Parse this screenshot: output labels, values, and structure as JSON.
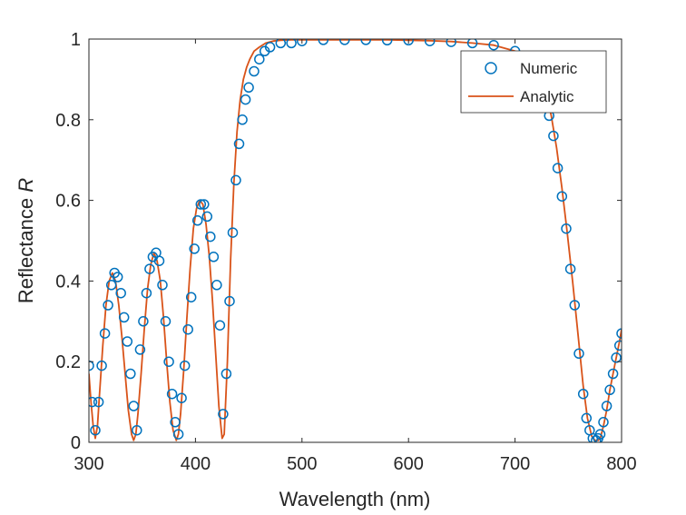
{
  "chart_data": {
    "type": "line",
    "xlabel": "Wavelength (nm)",
    "ylabel_prefix": "Reflectance",
    "ylabel_symbol": "R",
    "xlim": [
      300,
      800
    ],
    "ylim": [
      0,
      1
    ],
    "xticks": [
      300,
      400,
      500,
      600,
      700,
      800
    ],
    "xtick_labels": [
      "300",
      "400",
      "500",
      "600",
      "700",
      "800"
    ],
    "yticks": [
      0,
      0.2,
      0.4,
      0.6,
      0.8,
      1
    ],
    "ytick_labels": [
      "0",
      "0.2",
      "0.4",
      "0.6",
      "0.8",
      "1"
    ],
    "grid": false,
    "legend_placement": "top-right",
    "series": [
      {
        "name": "Numeric",
        "style": "circle-markers",
        "color": "#0072BD",
        "x": [
          300,
          303,
          306,
          309,
          312,
          315,
          318,
          321,
          324,
          327,
          330,
          333,
          336,
          339,
          342,
          345,
          348,
          351,
          354,
          357,
          360,
          363,
          366,
          369,
          372,
          375,
          378,
          381,
          384,
          387,
          390,
          393,
          396,
          399,
          402,
          405,
          408,
          411,
          414,
          417,
          420,
          423,
          426,
          429,
          432,
          435,
          438,
          441,
          444,
          447,
          450,
          455,
          460,
          465,
          470,
          480,
          490,
          500,
          520,
          540,
          560,
          580,
          600,
          620,
          640,
          660,
          680,
          700,
          715,
          725,
          732,
          736,
          740,
          744,
          748,
          752,
          756,
          760,
          764,
          767,
          770,
          773,
          776,
          778,
          780,
          783,
          786,
          789,
          792,
          795,
          798,
          800
        ],
        "y": [
          0.19,
          0.1,
          0.03,
          0.1,
          0.19,
          0.27,
          0.34,
          0.39,
          0.42,
          0.41,
          0.37,
          0.31,
          0.25,
          0.17,
          0.09,
          0.03,
          0.23,
          0.3,
          0.37,
          0.43,
          0.46,
          0.47,
          0.45,
          0.39,
          0.3,
          0.2,
          0.12,
          0.05,
          0.02,
          0.11,
          0.19,
          0.28,
          0.36,
          0.48,
          0.55,
          0.59,
          0.59,
          0.56,
          0.51,
          0.46,
          0.39,
          0.29,
          0.07,
          0.17,
          0.35,
          0.52,
          0.65,
          0.74,
          0.8,
          0.85,
          0.88,
          0.92,
          0.95,
          0.97,
          0.98,
          0.99,
          0.99,
          0.995,
          0.998,
          0.998,
          0.998,
          0.997,
          0.997,
          0.995,
          0.993,
          0.99,
          0.985,
          0.97,
          0.93,
          0.87,
          0.81,
          0.76,
          0.68,
          0.61,
          0.53,
          0.43,
          0.34,
          0.22,
          0.12,
          0.06,
          0.03,
          0.01,
          0.005,
          0.01,
          0.02,
          0.05,
          0.09,
          0.13,
          0.17,
          0.21,
          0.24,
          0.27
        ]
      },
      {
        "name": "Analytic",
        "style": "line",
        "color": "#D95319",
        "x": [
          300,
          302,
          304,
          306,
          308,
          310,
          313,
          316,
          319,
          322,
          325,
          328,
          331,
          334,
          337,
          340,
          342,
          344,
          346,
          349,
          352,
          355,
          358,
          361,
          364,
          367,
          370,
          373,
          376,
          379,
          382,
          384,
          386,
          389,
          392,
          395,
          398,
          401,
          404,
          407,
          410,
          413,
          416,
          419,
          422,
          425,
          427,
          430,
          433,
          436,
          439,
          442,
          445,
          448,
          451,
          455,
          460,
          466,
          473,
          480,
          490,
          500,
          520,
          540,
          560,
          580,
          600,
          620,
          640,
          660,
          680,
          700,
          710,
          720,
          728,
          734,
          739,
          744,
          749,
          754,
          759,
          764,
          768,
          772,
          775,
          778,
          780,
          783,
          786,
          789,
          792,
          795,
          798,
          800
        ],
        "y": [
          0.17,
          0.1,
          0.04,
          0.01,
          0.04,
          0.12,
          0.24,
          0.34,
          0.4,
          0.42,
          0.4,
          0.34,
          0.26,
          0.17,
          0.08,
          0.02,
          0.005,
          0.02,
          0.07,
          0.17,
          0.28,
          0.38,
          0.44,
          0.47,
          0.45,
          0.4,
          0.31,
          0.2,
          0.1,
          0.03,
          0.005,
          0.02,
          0.07,
          0.18,
          0.31,
          0.43,
          0.53,
          0.58,
          0.6,
          0.59,
          0.54,
          0.46,
          0.35,
          0.22,
          0.09,
          0.01,
          0.02,
          0.2,
          0.45,
          0.64,
          0.77,
          0.85,
          0.9,
          0.93,
          0.95,
          0.97,
          0.98,
          0.99,
          0.995,
          0.997,
          0.998,
          0.998,
          0.998,
          0.998,
          0.998,
          0.998,
          0.997,
          0.996,
          0.994,
          0.99,
          0.985,
          0.97,
          0.96,
          0.93,
          0.88,
          0.81,
          0.73,
          0.63,
          0.52,
          0.4,
          0.27,
          0.14,
          0.06,
          0.015,
          0.005,
          0.005,
          0.01,
          0.04,
          0.08,
          0.13,
          0.17,
          0.21,
          0.25,
          0.28
        ]
      }
    ]
  }
}
